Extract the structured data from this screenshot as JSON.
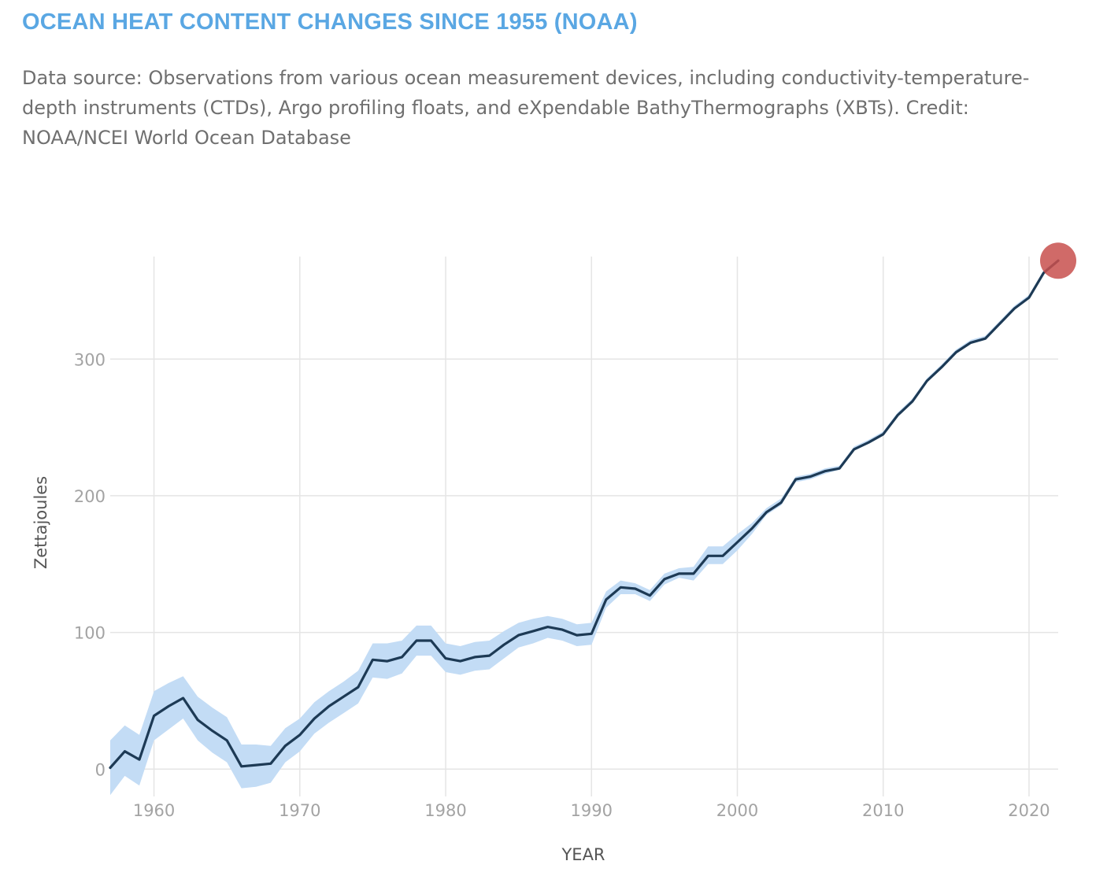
{
  "header": {
    "title": "OCEAN HEAT CONTENT CHANGES SINCE 1955 (NOAA)",
    "subtitle": "Data source: Observations from various ocean measurement devices, including conductivity-temperature-depth instruments (CTDs), Argo profiling floats, and eXpendable BathyThermographs (XBTs). Credit: NOAA/NCEI World Ocean Database"
  },
  "chart_data": {
    "type": "line",
    "title": "OCEAN HEAT CONTENT CHANGES SINCE 1955 (NOAA)",
    "xlabel": "YEAR",
    "ylabel": "Zettajoules",
    "xlim": [
      1957,
      2022
    ],
    "ylim": [
      -20,
      375
    ],
    "x_ticks": [
      1960,
      1970,
      1980,
      1990,
      2000,
      2010,
      2020
    ],
    "y_ticks": [
      0,
      100,
      200,
      300
    ],
    "grid": true,
    "colors": {
      "line": "#1d3a55",
      "band": "#c3dcf5",
      "highlight": "#c8504d",
      "grid": "#e5e5e5"
    },
    "x": [
      1957,
      1958,
      1959,
      1960,
      1961,
      1962,
      1963,
      1964,
      1965,
      1966,
      1967,
      1968,
      1969,
      1970,
      1971,
      1972,
      1973,
      1974,
      1975,
      1976,
      1977,
      1978,
      1979,
      1980,
      1981,
      1982,
      1983,
      1984,
      1985,
      1986,
      1987,
      1988,
      1989,
      1990,
      1991,
      1992,
      1993,
      1994,
      1995,
      1996,
      1997,
      1998,
      1999,
      2000,
      2001,
      2002,
      2003,
      2004,
      2005,
      2006,
      2007,
      2008,
      2009,
      2010,
      2011,
      2012,
      2013,
      2014,
      2015,
      2016,
      2017,
      2018,
      2019,
      2020,
      2021,
      2022
    ],
    "series": [
      {
        "values": [
          1,
          13,
          7,
          39,
          46,
          52,
          36,
          28,
          21,
          2,
          3,
          4,
          17,
          25,
          37,
          46,
          53,
          60,
          80,
          79,
          82,
          94,
          94,
          81,
          79,
          82,
          83,
          91,
          98,
          101,
          104,
          102,
          98,
          99,
          124,
          133,
          132,
          127,
          139,
          143,
          143,
          156,
          156,
          166,
          176,
          188,
          195,
          212,
          214,
          218,
          220,
          234,
          239,
          245,
          259,
          269,
          284,
          294,
          305,
          312,
          315,
          326,
          337,
          345,
          363,
          372
        ],
        "lower": [
          -19,
          -5,
          -12,
          21,
          29,
          37,
          21,
          12,
          5,
          -14,
          -13,
          -10,
          5,
          13,
          26,
          34,
          41,
          48,
          67,
          66,
          70,
          83,
          83,
          71,
          69,
          72,
          73,
          81,
          89,
          92,
          96,
          94,
          90,
          91,
          118,
          128,
          128,
          123,
          135,
          140,
          138,
          150,
          150,
          160,
          172,
          186,
          193,
          210,
          212,
          216,
          219,
          233,
          238,
          244,
          258,
          268,
          283,
          293,
          304,
          311,
          314,
          325,
          336,
          344,
          362,
          372
        ],
        "upper": [
          21,
          32,
          25,
          57,
          63,
          68,
          53,
          45,
          38,
          18,
          18,
          17,
          30,
          37,
          49,
          57,
          64,
          72,
          92,
          92,
          94,
          105,
          105,
          92,
          90,
          93,
          94,
          101,
          107,
          110,
          112,
          110,
          106,
          107,
          130,
          138,
          136,
          131,
          143,
          147,
          148,
          163,
          163,
          172,
          180,
          191,
          198,
          214,
          216,
          220,
          222,
          236,
          241,
          247,
          261,
          271,
          286,
          296,
          307,
          314,
          317,
          328,
          339,
          347,
          365,
          373
        ]
      }
    ],
    "highlight": {
      "x": 2022,
      "y": 372
    }
  }
}
